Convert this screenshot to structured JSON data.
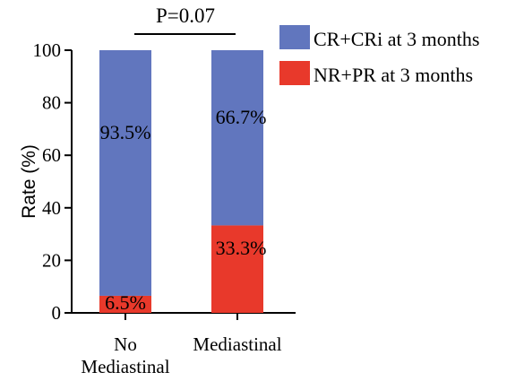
{
  "chart_data": {
    "type": "bar",
    "stacked": true,
    "categories": [
      "No\nMediastinal",
      "Mediastinal"
    ],
    "series": [
      {
        "name": "NR+PR at 3 months",
        "values": [
          6.5,
          33.3
        ],
        "labels": [
          "6.5%",
          "33.3%"
        ],
        "color": "#e8392b"
      },
      {
        "name": "CR+CRi at 3 months",
        "values": [
          93.5,
          66.7
        ],
        "labels": [
          "93.5%",
          "66.7%"
        ],
        "color": "#6176be"
      }
    ],
    "ylabel": "Rate (%)",
    "ylim": [
      0,
      100
    ],
    "yticks": [
      0,
      20,
      40,
      60,
      80,
      100
    ],
    "annotation": "P=0.07",
    "legend_position": "top-right",
    "grid": false
  }
}
